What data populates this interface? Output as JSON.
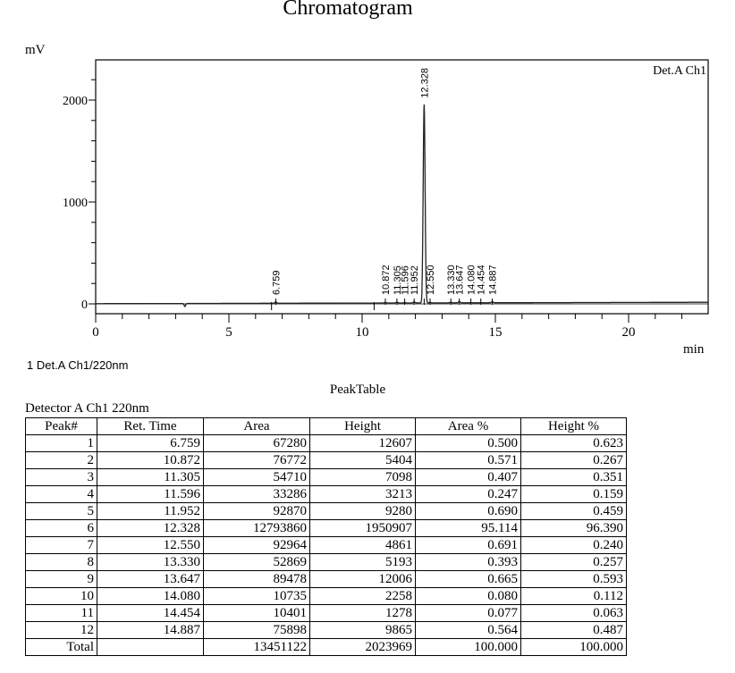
{
  "page": {
    "title": "Chromatogram",
    "y_unit": "mV",
    "x_unit": "min",
    "channel_label": "Det.A Ch1",
    "legend": "1  Det.A Ch1/220nm"
  },
  "peak_table": {
    "title": "PeakTable",
    "detector": "Detector A Ch1 220nm",
    "columns": [
      "Peak#",
      "Ret. Time",
      "Area",
      "Height",
      "Area %",
      "Height %"
    ],
    "rows": [
      [
        "1",
        "6.759",
        "67280",
        "12607",
        "0.500",
        "0.623"
      ],
      [
        "2",
        "10.872",
        "76772",
        "5404",
        "0.571",
        "0.267"
      ],
      [
        "3",
        "11.305",
        "54710",
        "7098",
        "0.407",
        "0.351"
      ],
      [
        "4",
        "11.596",
        "33286",
        "3213",
        "0.247",
        "0.159"
      ],
      [
        "5",
        "11.952",
        "92870",
        "9280",
        "0.690",
        "0.459"
      ],
      [
        "6",
        "12.328",
        "12793860",
        "1950907",
        "95.114",
        "96.390"
      ],
      [
        "7",
        "12.550",
        "92964",
        "4861",
        "0.691",
        "0.240"
      ],
      [
        "8",
        "13.330",
        "52869",
        "5193",
        "0.393",
        "0.257"
      ],
      [
        "9",
        "13.647",
        "89478",
        "12006",
        "0.665",
        "0.593"
      ],
      [
        "10",
        "14.080",
        "10735",
        "2258",
        "0.080",
        "0.112"
      ],
      [
        "11",
        "14.454",
        "10401",
        "1278",
        "0.077",
        "0.063"
      ],
      [
        "12",
        "14.887",
        "75898",
        "9865",
        "0.564",
        "0.487"
      ]
    ],
    "total": [
      "Total",
      "",
      "13451122",
      "2023969",
      "100.000",
      "100.000"
    ]
  },
  "chart_data": {
    "type": "line",
    "title": "Chromatogram",
    "xlabel": "min",
    "ylabel": "mV",
    "xlim": [
      0,
      23
    ],
    "ylim": [
      -100,
      2400
    ],
    "x_ticks": [
      0,
      5,
      10,
      15,
      20
    ],
    "y_ticks": [
      0,
      1000,
      2000
    ],
    "grid": false,
    "legend": [
      "1  Det.A Ch1/220nm"
    ],
    "annotation": "Det.A Ch1",
    "peaks": [
      {
        "label": "6.759",
        "rt": 6.759,
        "height_mV": 12.6
      },
      {
        "label": "10.872",
        "rt": 10.872,
        "height_mV": 5.4
      },
      {
        "label": "11.305",
        "rt": 11.305,
        "height_mV": 7.1
      },
      {
        "label": "11.596",
        "rt": 11.596,
        "height_mV": 3.2
      },
      {
        "label": "11.952",
        "rt": 11.952,
        "height_mV": 9.3
      },
      {
        "label": "12.328",
        "rt": 12.328,
        "height_mV": 1950.9
      },
      {
        "label": "12.550",
        "rt": 12.55,
        "height_mV": 4.9
      },
      {
        "label": "13.330",
        "rt": 13.33,
        "height_mV": 5.2
      },
      {
        "label": "13.647",
        "rt": 13.647,
        "height_mV": 12.0
      },
      {
        "label": "14.080",
        "rt": 14.08,
        "height_mV": 2.3
      },
      {
        "label": "14.454",
        "rt": 14.454,
        "height_mV": 1.3
      },
      {
        "label": "14.887",
        "rt": 14.887,
        "height_mV": 9.9
      }
    ],
    "baseline_features": [
      {
        "x": 3.35,
        "y": -30,
        "note": "small negative dip"
      }
    ]
  }
}
